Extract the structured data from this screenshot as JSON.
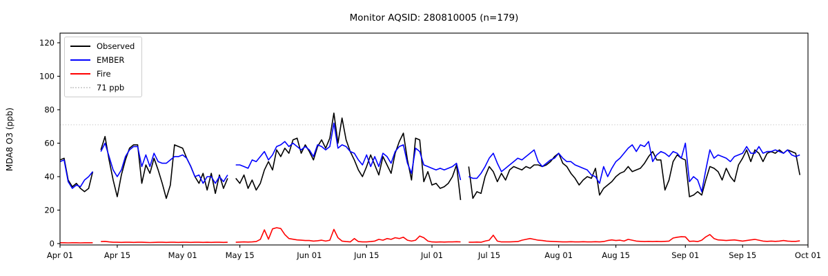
{
  "title": "Monitor AQSID: 280810005 (n=179)",
  "chart_data": {
    "type": "line",
    "title": "Monitor AQSID: 280810005 (n=179)",
    "xlabel": "",
    "ylabel": "MDA8 O3 (ppb)",
    "ylim": [
      -1,
      126
    ],
    "yticks": [
      0,
      20,
      40,
      60,
      80,
      100,
      120
    ],
    "xtick_labels": [
      "Apr 01",
      "Apr 15",
      "May 01",
      "May 15",
      "Jun 01",
      "Jun 15",
      "Jul 01",
      "Jul 15",
      "Aug 01",
      "Aug 15",
      "Sep 01",
      "Sep 15",
      "Oct 01"
    ],
    "xtick_days": [
      0,
      14,
      30,
      44,
      61,
      75,
      91,
      105,
      122,
      136,
      153,
      167,
      183
    ],
    "x_axis_span_days": 183,
    "grid": false,
    "legend_position": "upper-left",
    "threshold": {
      "label": "71 ppb",
      "value": 71,
      "color": "#d3d3d3",
      "style": "dotted"
    },
    "series": [
      {
        "name": "Observed",
        "color": "#000000",
        "values": [
          50,
          51,
          38,
          34,
          36,
          33,
          31,
          33,
          43,
          null,
          56,
          64,
          50,
          38,
          28,
          41,
          50,
          57,
          59,
          59,
          36,
          47,
          42,
          51,
          44,
          36,
          27,
          35,
          59,
          58,
          57,
          51,
          46,
          40,
          36,
          42,
          32,
          42,
          30,
          41,
          33,
          39,
          null,
          39,
          36,
          41,
          33,
          38,
          32,
          36,
          44,
          49,
          44,
          56,
          52,
          57,
          54,
          62,
          63,
          54,
          59,
          55,
          50,
          58,
          62,
          57,
          63,
          78,
          60,
          75,
          62,
          55,
          50,
          44,
          40,
          46,
          53,
          47,
          41,
          52,
          47,
          42,
          54,
          61,
          66,
          50,
          38,
          63,
          62,
          37,
          43,
          35,
          36,
          33,
          34,
          36,
          40,
          47,
          26,
          null,
          46,
          27,
          31,
          30,
          40,
          46,
          43,
          37,
          42,
          38,
          44,
          46,
          45,
          44,
          46,
          45,
          47,
          47,
          46,
          47,
          49,
          52,
          54,
          48,
          46,
          42,
          39,
          35,
          38,
          40,
          39,
          45,
          29,
          33,
          35,
          37,
          40,
          42,
          43,
          46,
          43,
          44,
          45,
          48,
          52,
          55,
          50,
          50,
          32,
          38,
          49,
          53,
          51,
          50,
          28,
          29,
          31,
          29,
          38,
          46,
          45,
          43,
          38,
          45,
          40,
          37,
          47,
          51,
          56,
          49,
          56,
          54,
          49,
          54,
          55,
          54,
          56,
          54,
          56,
          55,
          54,
          41
        ]
      },
      {
        "name": "EMBER",
        "color": "#0000ff",
        "values": [
          49,
          50,
          37,
          33,
          35,
          34,
          38,
          40,
          43,
          null,
          55,
          60,
          52,
          44,
          40,
          44,
          52,
          56,
          58,
          58,
          46,
          53,
          46,
          54,
          49,
          48,
          48,
          50,
          52,
          52,
          53,
          51,
          46,
          40,
          41,
          36,
          40,
          40,
          36,
          40,
          37,
          41,
          null,
          47,
          47,
          46,
          45,
          50,
          49,
          52,
          55,
          50,
          53,
          58,
          59,
          61,
          58,
          60,
          58,
          56,
          58,
          56,
          52,
          59,
          58,
          56,
          58,
          72,
          57,
          59,
          58,
          55,
          54,
          50,
          47,
          53,
          46,
          52,
          46,
          54,
          52,
          48,
          55,
          58,
          59,
          48,
          42,
          57,
          55,
          47,
          46,
          45,
          44,
          45,
          44,
          45,
          46,
          48,
          38,
          null,
          40,
          39,
          39,
          42,
          46,
          51,
          54,
          48,
          43,
          45,
          47,
          49,
          51,
          50,
          52,
          54,
          56,
          49,
          46,
          48,
          50,
          51,
          54,
          51,
          49,
          49,
          47,
          46,
          45,
          44,
          41,
          40,
          36,
          46,
          40,
          45,
          49,
          51,
          54,
          57,
          59,
          55,
          59,
          58,
          61,
          49,
          53,
          55,
          54,
          52,
          55,
          54,
          51,
          60,
          37,
          40,
          38,
          31,
          44,
          56,
          51,
          53,
          52,
          51,
          49,
          52,
          53,
          54,
          58,
          54,
          54,
          58,
          54,
          55,
          55,
          56,
          55,
          54,
          56,
          53,
          52,
          53
        ]
      },
      {
        "name": "Fire",
        "color": "#ff0000",
        "values": [
          0.5,
          0.5,
          0.4,
          0.5,
          0.5,
          0.4,
          0.5,
          0.5,
          0.5,
          null,
          1.2,
          1.3,
          1.0,
          0.8,
          0.8,
          0.7,
          0.8,
          0.8,
          0.7,
          0.8,
          0.8,
          0.7,
          0.6,
          0.7,
          0.8,
          0.8,
          0.7,
          0.8,
          0.8,
          0.7,
          0.8,
          0.8,
          0.7,
          0.8,
          0.8,
          0.7,
          0.8,
          0.7,
          0.8,
          0.8,
          0.7,
          0.8,
          null,
          0.8,
          0.9,
          1.0,
          0.9,
          1.0,
          1.2,
          2.5,
          8.2,
          2.6,
          8.8,
          9.5,
          9.0,
          5.4,
          3.0,
          2.6,
          2.2,
          2.0,
          1.8,
          1.8,
          1.5,
          1.7,
          2.0,
          1.5,
          2.0,
          8.5,
          3.5,
          1.5,
          1.2,
          1.0,
          3.0,
          1.2,
          1.0,
          1.0,
          1.2,
          1.5,
          2.5,
          2.0,
          3.0,
          2.5,
          3.5,
          3.0,
          3.8,
          2.0,
          1.5,
          2.0,
          4.5,
          3.5,
          1.5,
          1.0,
          0.9,
          1.0,
          0.9,
          1.0,
          1.0,
          1.1,
          1.0,
          null,
          0.8,
          0.8,
          0.9,
          0.8,
          1.5,
          2.0,
          5.0,
          1.5,
          1.0,
          1.0,
          1.0,
          1.1,
          1.2,
          2.0,
          2.5,
          3.0,
          2.5,
          2.0,
          1.8,
          1.5,
          1.3,
          1.2,
          1.1,
          1.0,
          1.0,
          1.1,
          1.0,
          1.0,
          1.1,
          1.0,
          1.0,
          1.1,
          1.0,
          1.2,
          1.8,
          2.2,
          1.8,
          2.0,
          1.5,
          2.5,
          2.0,
          1.5,
          1.3,
          1.2,
          1.3,
          1.2,
          1.3,
          1.2,
          1.3,
          1.5,
          3.3,
          3.8,
          4.1,
          4.0,
          1.3,
          1.5,
          1.2,
          2.0,
          4.0,
          5.4,
          3.0,
          2.2,
          2.0,
          1.8,
          2.0,
          2.2,
          1.8,
          1.5,
          1.8,
          2.2,
          2.5,
          2.0,
          1.5,
          1.3,
          1.5,
          1.3,
          1.5,
          1.8,
          1.5,
          1.3,
          1.3,
          1.6
        ]
      }
    ]
  },
  "legend": {
    "entries": [
      {
        "label": "Observed",
        "color": "#000000",
        "style": "solid"
      },
      {
        "label": "EMBER",
        "color": "#0000ff",
        "style": "solid"
      },
      {
        "label": "Fire",
        "color": "#ff0000",
        "style": "solid"
      },
      {
        "label": "71 ppb",
        "color": "#d3d3d3",
        "style": "dotted"
      }
    ]
  }
}
